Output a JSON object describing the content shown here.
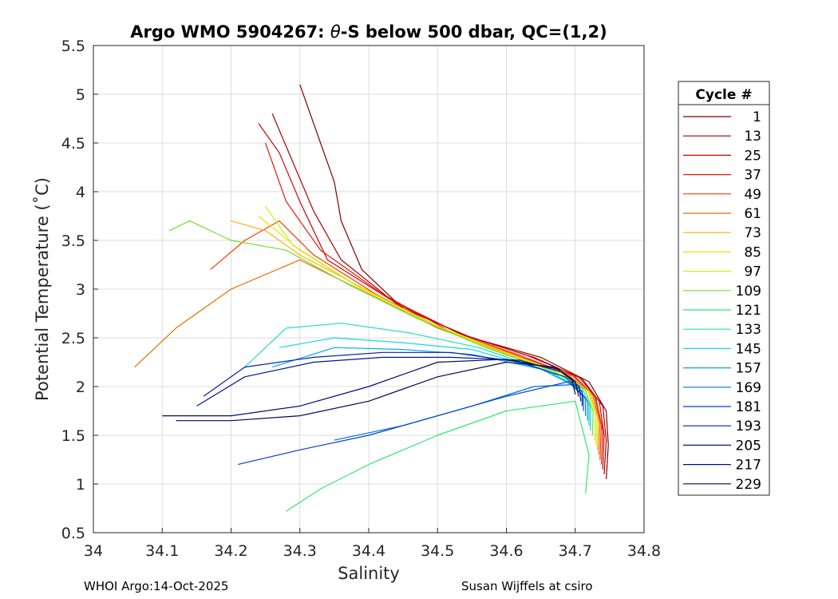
{
  "chart_data": {
    "type": "line",
    "title_prefix": "Argo WMO 5904267: ",
    "title_theta": "θ",
    "title_suffix": "-S below 500 dbar,  QC=(1,2)",
    "xlabel": "Salinity",
    "ylabel": "Potential Temperature (˚C)",
    "xlim": [
      34.0,
      34.8
    ],
    "ylim": [
      0.5,
      5.5
    ],
    "xticks": [
      "34",
      "34.1",
      "34.2",
      "34.3",
      "34.4",
      "34.5",
      "34.6",
      "34.7",
      "34.8"
    ],
    "yticks": [
      "0.5",
      "1",
      "1.5",
      "2",
      "2.5",
      "3",
      "3.5",
      "4",
      "4.5",
      "5",
      "5.5"
    ],
    "grid": true,
    "legend_title": "Cycle #",
    "legend_placement": "outside-right",
    "legend": [
      {
        "label": "1",
        "color": "#800000"
      },
      {
        "label": "13",
        "color": "#a80000"
      },
      {
        "label": "25",
        "color": "#d00000"
      },
      {
        "label": "37",
        "color": "#f01800"
      },
      {
        "label": "49",
        "color": "#ff3800"
      },
      {
        "label": "61",
        "color": "#e07000"
      },
      {
        "label": "73",
        "color": "#ffb000"
      },
      {
        "label": "85",
        "color": "#f0e000"
      },
      {
        "label": "97",
        "color": "#c8f010"
      },
      {
        "label": "109",
        "color": "#70e030"
      },
      {
        "label": "121",
        "color": "#30e870"
      },
      {
        "label": "133",
        "color": "#20e0b0"
      },
      {
        "label": "145",
        "color": "#10d8e8"
      },
      {
        "label": "157",
        "color": "#00a8f0"
      },
      {
        "label": "169",
        "color": "#0070e0"
      },
      {
        "label": "181",
        "color": "#0040d0"
      },
      {
        "label": "193",
        "color": "#0020b0"
      },
      {
        "label": "205",
        "color": "#001890"
      },
      {
        "label": "217",
        "color": "#001070"
      },
      {
        "label": "229",
        "color": "#000858"
      }
    ],
    "series": [
      {
        "name": "1",
        "color": "#800000",
        "points": [
          [
            34.745,
            1.05
          ],
          [
            34.748,
            1.4
          ],
          [
            34.745,
            1.75
          ],
          [
            34.72,
            2.05
          ],
          [
            34.65,
            2.3
          ],
          [
            34.55,
            2.5
          ],
          [
            34.45,
            2.8
          ],
          [
            34.39,
            3.2
          ],
          [
            34.36,
            3.7
          ],
          [
            34.35,
            4.1
          ],
          [
            34.33,
            4.5
          ],
          [
            34.3,
            5.1
          ]
        ]
      },
      {
        "name": "13",
        "color": "#a80000",
        "points": [
          [
            34.742,
            1.1
          ],
          [
            34.745,
            1.45
          ],
          [
            34.74,
            1.8
          ],
          [
            34.71,
            2.08
          ],
          [
            34.64,
            2.3
          ],
          [
            34.54,
            2.52
          ],
          [
            34.44,
            2.85
          ],
          [
            34.36,
            3.3
          ],
          [
            34.32,
            3.8
          ],
          [
            34.29,
            4.3
          ],
          [
            34.26,
            4.8
          ]
        ]
      },
      {
        "name": "25",
        "color": "#d00000",
        "points": [
          [
            34.74,
            1.15
          ],
          [
            34.742,
            1.5
          ],
          [
            34.735,
            1.85
          ],
          [
            34.705,
            2.1
          ],
          [
            34.63,
            2.32
          ],
          [
            34.53,
            2.55
          ],
          [
            34.43,
            2.9
          ],
          [
            34.34,
            3.3
          ],
          [
            34.3,
            3.9
          ],
          [
            34.27,
            4.4
          ],
          [
            34.24,
            4.7
          ]
        ]
      },
      {
        "name": "37",
        "color": "#f01800",
        "points": [
          [
            34.738,
            1.2
          ],
          [
            34.74,
            1.55
          ],
          [
            34.73,
            1.88
          ],
          [
            34.7,
            2.1
          ],
          [
            34.62,
            2.32
          ],
          [
            34.52,
            2.56
          ],
          [
            34.42,
            2.95
          ],
          [
            34.33,
            3.4
          ],
          [
            34.28,
            3.9
          ],
          [
            34.25,
            4.5
          ]
        ]
      },
      {
        "name": "49",
        "color": "#ff3800",
        "points": [
          [
            34.736,
            1.25
          ],
          [
            34.738,
            1.6
          ],
          [
            34.728,
            1.9
          ],
          [
            34.695,
            2.12
          ],
          [
            34.61,
            2.33
          ],
          [
            34.51,
            2.58
          ],
          [
            34.41,
            2.95
          ],
          [
            34.32,
            3.35
          ],
          [
            34.27,
            3.7
          ],
          [
            34.22,
            3.5
          ],
          [
            34.17,
            3.2
          ]
        ]
      },
      {
        "name": "61",
        "color": "#e07000",
        "points": [
          [
            34.734,
            1.3
          ],
          [
            34.736,
            1.62
          ],
          [
            34.725,
            1.92
          ],
          [
            34.69,
            2.12
          ],
          [
            34.6,
            2.34
          ],
          [
            34.5,
            2.6
          ],
          [
            34.4,
            2.95
          ],
          [
            34.3,
            3.3
          ],
          [
            34.2,
            3.0
          ],
          [
            34.12,
            2.6
          ],
          [
            34.06,
            2.2
          ]
        ]
      },
      {
        "name": "73",
        "color": "#ffb000",
        "points": [
          [
            34.732,
            1.35
          ],
          [
            34.734,
            1.65
          ],
          [
            34.722,
            1.93
          ],
          [
            34.685,
            2.13
          ],
          [
            34.6,
            2.35
          ],
          [
            34.5,
            2.62
          ],
          [
            34.4,
            2.98
          ],
          [
            34.3,
            3.35
          ],
          [
            34.25,
            3.6
          ],
          [
            34.2,
            3.7
          ]
        ]
      },
      {
        "name": "85",
        "color": "#f0e000",
        "points": [
          [
            34.73,
            1.4
          ],
          [
            34.732,
            1.7
          ],
          [
            34.72,
            1.95
          ],
          [
            34.68,
            2.14
          ],
          [
            34.59,
            2.37
          ],
          [
            34.49,
            2.65
          ],
          [
            34.39,
            3.0
          ],
          [
            34.3,
            3.4
          ],
          [
            34.24,
            3.75
          ]
        ]
      },
      {
        "name": "97",
        "color": "#c8f010",
        "points": [
          [
            34.728,
            1.45
          ],
          [
            34.73,
            1.72
          ],
          [
            34.718,
            1.96
          ],
          [
            34.675,
            2.15
          ],
          [
            34.58,
            2.38
          ],
          [
            34.48,
            2.68
          ],
          [
            34.38,
            3.05
          ],
          [
            34.29,
            3.45
          ],
          [
            34.25,
            3.85
          ]
        ]
      },
      {
        "name": "109",
        "color": "#70e030",
        "points": [
          [
            34.725,
            1.5
          ],
          [
            34.726,
            1.75
          ],
          [
            34.714,
            1.97
          ],
          [
            34.67,
            2.15
          ],
          [
            34.57,
            2.4
          ],
          [
            34.47,
            2.7
          ],
          [
            34.37,
            3.05
          ],
          [
            34.28,
            3.4
          ],
          [
            34.2,
            3.5
          ],
          [
            34.14,
            3.7
          ],
          [
            34.11,
            3.6
          ]
        ]
      },
      {
        "name": "121",
        "color": "#30e870",
        "points": [
          [
            34.715,
            0.9
          ],
          [
            34.72,
            1.3
          ],
          [
            34.7,
            1.85
          ],
          [
            34.6,
            1.75
          ],
          [
            34.5,
            1.5
          ],
          [
            34.4,
            1.2
          ],
          [
            34.33,
            0.95
          ],
          [
            34.28,
            0.72
          ]
        ]
      },
      {
        "name": "133",
        "color": "#20e0b0",
        "points": [
          [
            34.722,
            1.55
          ],
          [
            34.722,
            1.8
          ],
          [
            34.71,
            1.98
          ],
          [
            34.66,
            2.16
          ],
          [
            34.56,
            2.4
          ],
          [
            34.46,
            2.55
          ],
          [
            34.36,
            2.65
          ],
          [
            34.28,
            2.6
          ],
          [
            34.22,
            2.2
          ]
        ]
      },
      {
        "name": "145",
        "color": "#10d8e8",
        "points": [
          [
            34.72,
            1.6
          ],
          [
            34.72,
            1.82
          ],
          [
            34.705,
            1.99
          ],
          [
            34.655,
            2.17
          ],
          [
            34.55,
            2.38
          ],
          [
            34.45,
            2.45
          ],
          [
            34.35,
            2.5
          ],
          [
            34.27,
            2.4
          ]
        ]
      },
      {
        "name": "157",
        "color": "#00a8f0",
        "points": [
          [
            34.718,
            1.65
          ],
          [
            34.718,
            1.85
          ],
          [
            34.7,
            2.0
          ],
          [
            34.65,
            2.18
          ],
          [
            34.55,
            2.33
          ],
          [
            34.45,
            2.38
          ],
          [
            34.35,
            2.4
          ],
          [
            34.26,
            2.2
          ]
        ]
      },
      {
        "name": "169",
        "color": "#0070e0",
        "points": [
          [
            34.715,
            1.7
          ],
          [
            34.715,
            1.88
          ],
          [
            34.695,
            2.02
          ],
          [
            34.64,
            2.0
          ],
          [
            34.55,
            1.8
          ],
          [
            34.45,
            1.6
          ],
          [
            34.35,
            1.45
          ]
        ]
      },
      {
        "name": "181",
        "color": "#0040d0",
        "points": [
          [
            34.712,
            1.75
          ],
          [
            34.712,
            1.9
          ],
          [
            34.69,
            2.05
          ],
          [
            34.6,
            1.9
          ],
          [
            34.5,
            1.7
          ],
          [
            34.4,
            1.5
          ],
          [
            34.3,
            1.35
          ],
          [
            34.21,
            1.2
          ]
        ]
      },
      {
        "name": "193",
        "color": "#0020b0",
        "points": [
          [
            34.71,
            1.8
          ],
          [
            34.71,
            1.95
          ],
          [
            34.685,
            2.1
          ],
          [
            34.62,
            2.25
          ],
          [
            34.52,
            2.35
          ],
          [
            34.42,
            2.35
          ],
          [
            34.32,
            2.3
          ],
          [
            34.22,
            2.2
          ],
          [
            34.16,
            1.9
          ]
        ]
      },
      {
        "name": "205",
        "color": "#001890",
        "points": [
          [
            34.708,
            1.85
          ],
          [
            34.706,
            2.0
          ],
          [
            34.68,
            2.15
          ],
          [
            34.62,
            2.27
          ],
          [
            34.52,
            2.3
          ],
          [
            34.42,
            2.3
          ],
          [
            34.32,
            2.25
          ],
          [
            34.22,
            2.1
          ],
          [
            34.15,
            1.8
          ]
        ]
      },
      {
        "name": "217",
        "color": "#001070",
        "points": [
          [
            34.705,
            1.9
          ],
          [
            34.7,
            2.05
          ],
          [
            34.675,
            2.18
          ],
          [
            34.6,
            2.28
          ],
          [
            34.5,
            2.25
          ],
          [
            34.4,
            2.0
          ],
          [
            34.3,
            1.8
          ],
          [
            34.2,
            1.7
          ],
          [
            34.1,
            1.7
          ]
        ]
      },
      {
        "name": "229",
        "color": "#000858",
        "points": [
          [
            34.7,
            1.92
          ],
          [
            34.695,
            2.08
          ],
          [
            34.67,
            2.2
          ],
          [
            34.6,
            2.25
          ],
          [
            34.5,
            2.1
          ],
          [
            34.4,
            1.85
          ],
          [
            34.3,
            1.7
          ],
          [
            34.2,
            1.65
          ],
          [
            34.12,
            1.65
          ]
        ]
      }
    ]
  },
  "footer": {
    "left": "WHOI Argo:14-Oct-2025",
    "right": "Susan Wijffels at csiro"
  }
}
